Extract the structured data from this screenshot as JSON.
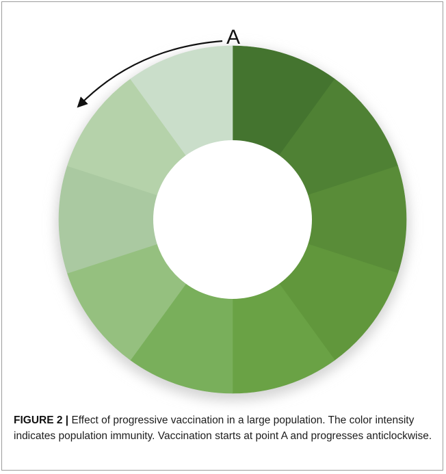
{
  "figure": {
    "point_label": "A",
    "caption_label": "FIGURE 2 |",
    "caption_text": " Effect of progressive vaccination in a large population. The color intensity indicates population immunity. Vaccination starts at point A and progresses anticlockwise."
  },
  "segments": [
    {
      "color": "#44742f"
    },
    {
      "color": "#4f8134"
    },
    {
      "color": "#598c38"
    },
    {
      "color": "#61973c"
    },
    {
      "color": "#6aa245"
    },
    {
      "color": "#79af5b"
    },
    {
      "color": "#95c07f"
    },
    {
      "color": "#aac9a1"
    },
    {
      "color": "#b5d2aa"
    },
    {
      "color": "#cadeca"
    }
  ]
}
